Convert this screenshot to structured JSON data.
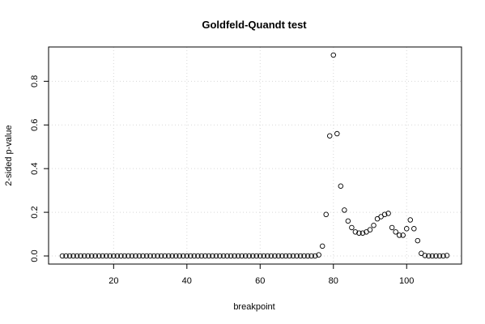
{
  "chart_data": {
    "type": "scatter",
    "title": "Goldfeld-Quandt test",
    "xlabel": "breakpoint",
    "ylabel": "2-sided p-value",
    "xlim": [
      6,
      111
    ],
    "ylim": [
      0.0,
      0.92
    ],
    "xticks": [
      20,
      40,
      60,
      80,
      100
    ],
    "yticks": [
      0.0,
      0.2,
      0.4,
      0.6,
      0.8
    ],
    "ytick_labels": [
      "0.0",
      "0.2",
      "0.4",
      "0.6",
      "0.8"
    ],
    "grid": true,
    "marker": "open-circle",
    "points": [
      [
        6,
        0.0
      ],
      [
        7,
        0.0
      ],
      [
        8,
        0.0
      ],
      [
        9,
        0.0
      ],
      [
        10,
        0.0
      ],
      [
        11,
        0.0
      ],
      [
        12,
        0.0
      ],
      [
        13,
        0.0
      ],
      [
        14,
        0.0
      ],
      [
        15,
        0.0
      ],
      [
        16,
        0.0
      ],
      [
        17,
        0.0
      ],
      [
        18,
        0.0
      ],
      [
        19,
        0.0
      ],
      [
        20,
        0.0
      ],
      [
        21,
        0.0
      ],
      [
        22,
        0.0
      ],
      [
        23,
        0.0
      ],
      [
        24,
        0.0
      ],
      [
        25,
        0.0
      ],
      [
        26,
        0.0
      ],
      [
        27,
        0.0
      ],
      [
        28,
        0.0
      ],
      [
        29,
        0.0
      ],
      [
        30,
        0.0
      ],
      [
        31,
        0.0
      ],
      [
        32,
        0.0
      ],
      [
        33,
        0.0
      ],
      [
        34,
        0.0
      ],
      [
        35,
        0.0
      ],
      [
        36,
        0.0
      ],
      [
        37,
        0.0
      ],
      [
        38,
        0.0
      ],
      [
        39,
        0.0
      ],
      [
        40,
        0.0
      ],
      [
        41,
        0.0
      ],
      [
        42,
        0.0
      ],
      [
        43,
        0.0
      ],
      [
        44,
        0.0
      ],
      [
        45,
        0.0
      ],
      [
        46,
        0.0
      ],
      [
        47,
        0.0
      ],
      [
        48,
        0.0
      ],
      [
        49,
        0.0
      ],
      [
        50,
        0.0
      ],
      [
        51,
        0.0
      ],
      [
        52,
        0.0
      ],
      [
        53,
        0.0
      ],
      [
        54,
        0.0
      ],
      [
        55,
        0.0
      ],
      [
        56,
        0.0
      ],
      [
        57,
        0.0
      ],
      [
        58,
        0.0
      ],
      [
        59,
        0.0
      ],
      [
        60,
        0.0
      ],
      [
        61,
        0.0
      ],
      [
        62,
        0.0
      ],
      [
        63,
        0.0
      ],
      [
        64,
        0.0
      ],
      [
        65,
        0.0
      ],
      [
        66,
        0.0
      ],
      [
        67,
        0.0
      ],
      [
        68,
        0.0
      ],
      [
        69,
        0.0
      ],
      [
        70,
        0.0
      ],
      [
        71,
        0.0
      ],
      [
        72,
        0.0
      ],
      [
        73,
        0.0
      ],
      [
        74,
        0.0
      ],
      [
        75,
        0.0
      ],
      [
        76,
        0.005
      ],
      [
        77,
        0.045
      ],
      [
        78,
        0.19
      ],
      [
        79,
        0.55
      ],
      [
        80,
        0.92
      ],
      [
        81,
        0.56
      ],
      [
        82,
        0.32
      ],
      [
        83,
        0.21
      ],
      [
        84,
        0.16
      ],
      [
        85,
        0.13
      ],
      [
        86,
        0.11
      ],
      [
        87,
        0.105
      ],
      [
        88,
        0.105
      ],
      [
        89,
        0.11
      ],
      [
        90,
        0.12
      ],
      [
        91,
        0.14
      ],
      [
        92,
        0.17
      ],
      [
        93,
        0.18
      ],
      [
        94,
        0.19
      ],
      [
        95,
        0.195
      ],
      [
        96,
        0.13
      ],
      [
        97,
        0.11
      ],
      [
        98,
        0.095
      ],
      [
        99,
        0.095
      ],
      [
        100,
        0.125
      ],
      [
        101,
        0.165
      ],
      [
        102,
        0.125
      ],
      [
        103,
        0.07
      ],
      [
        104,
        0.012
      ],
      [
        105,
        0.002
      ],
      [
        106,
        0.0
      ],
      [
        107,
        0.0
      ],
      [
        108,
        0.0
      ],
      [
        109,
        0.0
      ],
      [
        110,
        0.0
      ],
      [
        111,
        0.002
      ]
    ]
  }
}
